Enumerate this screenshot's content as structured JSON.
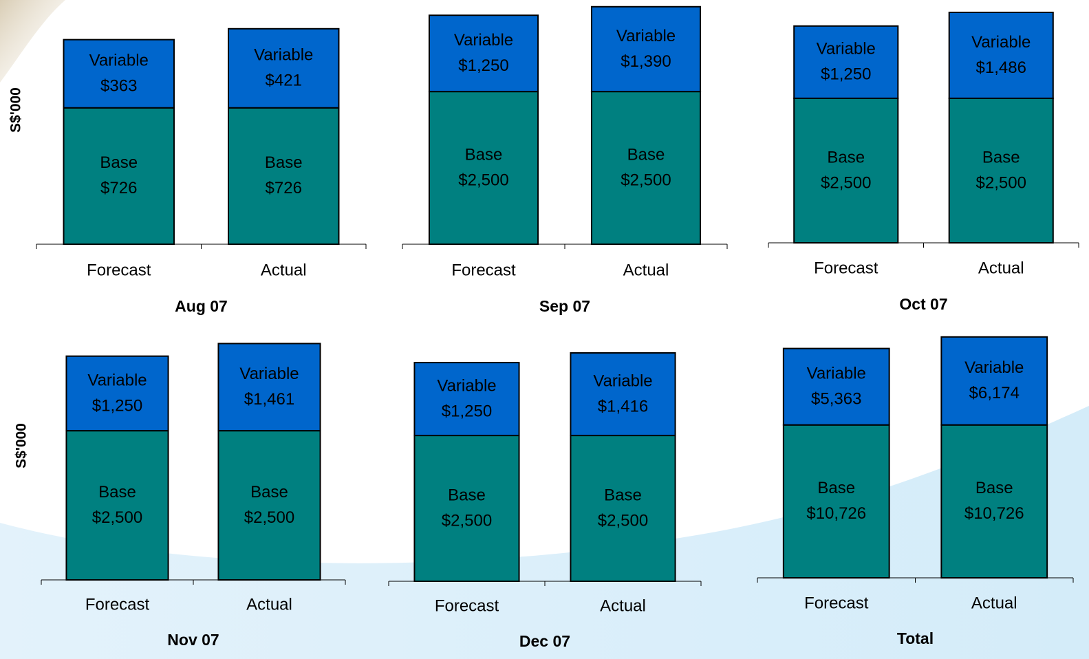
{
  "chart_data": [
    {
      "type": "bar",
      "stacked": true,
      "title": "Aug 07",
      "ylabel": "S$'000",
      "categories": [
        "Forecast",
        "Actual"
      ],
      "ylim": [
        0,
        1300
      ],
      "series": [
        {
          "name": "Base",
          "color": "#008080",
          "values": [
            726,
            726
          ],
          "value_labels": [
            "$726",
            "$726"
          ]
        },
        {
          "name": "Variable",
          "color": "#0066cc",
          "values": [
            363,
            421
          ],
          "value_labels": [
            "$363",
            "$421"
          ]
        }
      ]
    },
    {
      "type": "bar",
      "stacked": true,
      "title": "Sep 07",
      "categories": [
        "Forecast",
        "Actual"
      ],
      "ylim": [
        0,
        4000
      ],
      "series": [
        {
          "name": "Base",
          "color": "#008080",
          "values": [
            2500,
            2500
          ],
          "value_labels": [
            "$2,500",
            "$2,500"
          ]
        },
        {
          "name": "Variable",
          "color": "#0066cc",
          "values": [
            1250,
            1390
          ],
          "value_labels": [
            "$1,250",
            "$1,390"
          ]
        }
      ]
    },
    {
      "type": "bar",
      "stacked": true,
      "title": "Oct 07",
      "categories": [
        "Forecast",
        "Actual"
      ],
      "ylim": [
        0,
        4200
      ],
      "series": [
        {
          "name": "Base",
          "color": "#008080",
          "values": [
            2500,
            2500
          ],
          "value_labels": [
            "$2,500",
            "$2,500"
          ]
        },
        {
          "name": "Variable",
          "color": "#0066cc",
          "values": [
            1250,
            1486
          ],
          "value_labels": [
            "$1,250",
            "$1,486"
          ]
        }
      ]
    },
    {
      "type": "bar",
      "stacked": true,
      "title": "Nov 07",
      "ylabel": "S$'000",
      "categories": [
        "Forecast",
        "Actual"
      ],
      "ylim": [
        0,
        4300
      ],
      "series": [
        {
          "name": "Base",
          "color": "#008080",
          "values": [
            2500,
            2500
          ],
          "value_labels": [
            "$2,500",
            "$2,500"
          ]
        },
        {
          "name": "Variable",
          "color": "#0066cc",
          "values": [
            1250,
            1461
          ],
          "value_labels": [
            "$1,250",
            "$1,461"
          ]
        }
      ]
    },
    {
      "type": "bar",
      "stacked": true,
      "title": "Dec 07",
      "categories": [
        "Forecast",
        "Actual"
      ],
      "ylim": [
        0,
        4400
      ],
      "series": [
        {
          "name": "Base",
          "color": "#008080",
          "values": [
            2500,
            2500
          ],
          "value_labels": [
            "$2,500",
            "$2,500"
          ]
        },
        {
          "name": "Variable",
          "color": "#0066cc",
          "values": [
            1250,
            1416
          ],
          "value_labels": [
            "$1,250",
            "$1,416"
          ]
        }
      ]
    },
    {
      "type": "bar",
      "stacked": true,
      "title": "Total",
      "categories": [
        "Forecast",
        "Actual"
      ],
      "ylim": [
        0,
        18000
      ],
      "series": [
        {
          "name": "Base",
          "color": "#008080",
          "values": [
            10726,
            10726
          ],
          "value_labels": [
            "$10,726",
            "$10,726"
          ]
        },
        {
          "name": "Variable",
          "color": "#0066cc",
          "values": [
            5363,
            6174
          ],
          "value_labels": [
            "$5,363",
            "$6,174"
          ]
        }
      ]
    }
  ]
}
